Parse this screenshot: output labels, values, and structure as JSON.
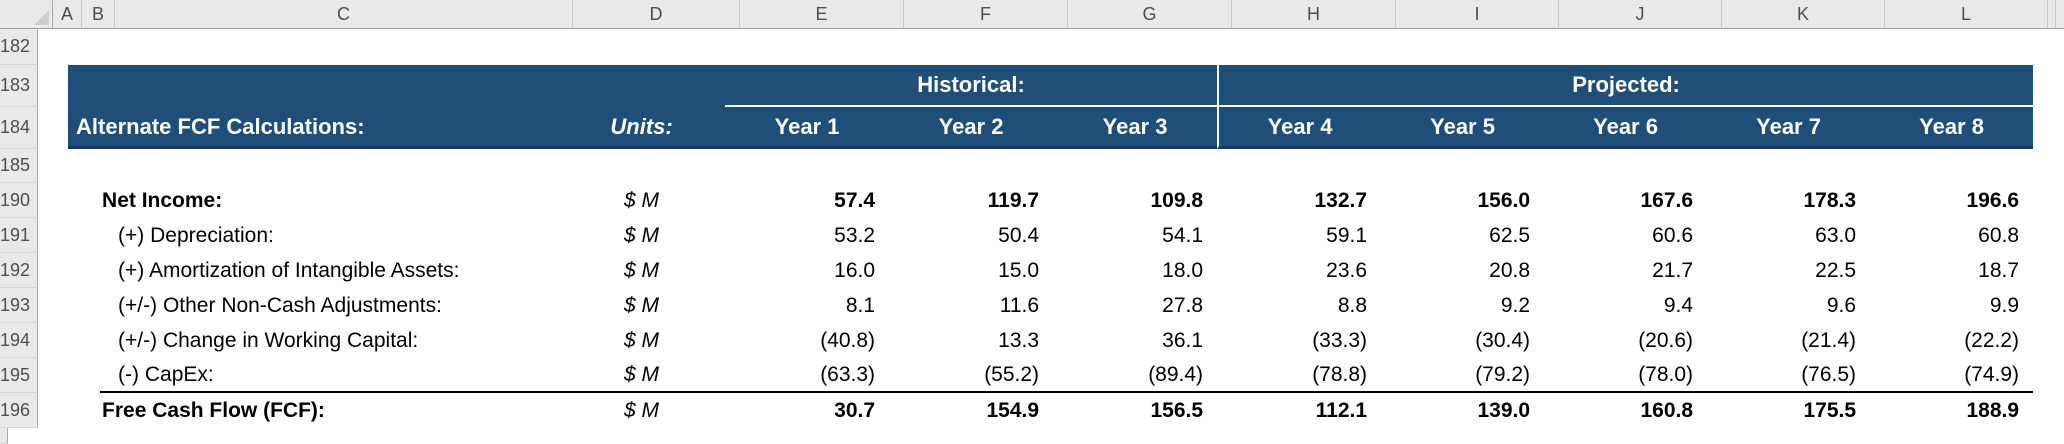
{
  "sheet": {
    "column_headers": [
      "A",
      "B",
      "C",
      "D",
      "E",
      "F",
      "G",
      "H",
      "I",
      "J",
      "K",
      "L"
    ],
    "row_numbers": [
      "182",
      "183",
      "184",
      "185",
      "190",
      "191",
      "192",
      "193",
      "194",
      "195",
      "196"
    ],
    "table": {
      "title": "Alternate FCF Calculations:",
      "units_header": "Units:",
      "sections": {
        "historical": "Historical:",
        "projected": "Projected:"
      },
      "years": [
        "Year 1",
        "Year 2",
        "Year 3",
        "Year 4",
        "Year 5",
        "Year 6",
        "Year 7",
        "Year 8"
      ],
      "rows": [
        {
          "label": "Net Income:",
          "units": "$ M",
          "emphasis": "bold",
          "values": [
            "57.4",
            "119.7",
            "109.8",
            "132.7",
            "156.0",
            "167.6",
            "178.3",
            "196.6"
          ]
        },
        {
          "label": "(+) Depreciation:",
          "units": "$ M",
          "emphasis": "normal",
          "values": [
            "53.2",
            "50.4",
            "54.1",
            "59.1",
            "62.5",
            "60.6",
            "63.0",
            "60.8"
          ]
        },
        {
          "label": "(+) Amortization of Intangible Assets:",
          "units": "$ M",
          "emphasis": "normal",
          "values": [
            "16.0",
            "15.0",
            "18.0",
            "23.6",
            "20.8",
            "21.7",
            "22.5",
            "18.7"
          ]
        },
        {
          "label": "(+/-) Other Non-Cash Adjustments:",
          "units": "$ M",
          "emphasis": "normal",
          "values": [
            "8.1",
            "11.6",
            "27.8",
            "8.8",
            "9.2",
            "9.4",
            "9.6",
            "9.9"
          ]
        },
        {
          "label": "(+/-) Change in Working Capital:",
          "units": "$ M",
          "emphasis": "normal",
          "values": [
            "(40.8)",
            "13.3",
            "36.1",
            "(33.3)",
            "(30.4)",
            "(20.6)",
            "(21.4)",
            "(22.2)"
          ]
        },
        {
          "label": "(-) CapEx:",
          "units": "$ M",
          "emphasis": "normal",
          "values": [
            "(63.3)",
            "(55.2)",
            "(89.4)",
            "(78.8)",
            "(79.2)",
            "(78.0)",
            "(76.5)",
            "(74.9)"
          ]
        },
        {
          "label": "Free Cash Flow (FCF):",
          "units": "$ M",
          "emphasis": "bold",
          "values": [
            "30.7",
            "154.9",
            "156.5",
            "112.1",
            "139.0",
            "160.8",
            "175.5",
            "188.9"
          ]
        }
      ]
    },
    "colors": {
      "header_blue": "#1f4e79",
      "header_bottom_border": "#16365c",
      "chrome_gray": "#e9e9e9"
    }
  }
}
